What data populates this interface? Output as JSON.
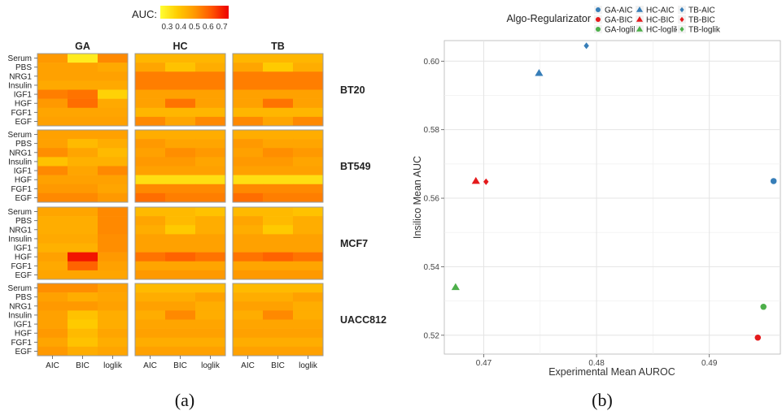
{
  "panel_a_label": "(a)",
  "panel_b_label": "(b)",
  "chart_data": [
    {
      "type": "heatmap",
      "legend": {
        "title": "AUC:",
        "ticks": [
          "0.3",
          "0.4",
          "0.5",
          "0.6",
          "0.7"
        ],
        "range": [
          0.25,
          0.75
        ],
        "colors": [
          "#ffff33",
          "#ffcc00",
          "#ff9900",
          "#ff5500",
          "#ee0000"
        ]
      },
      "col_facets": [
        "GA",
        "HC",
        "TB"
      ],
      "row_facets": [
        "BT20",
        "BT549",
        "MCF7",
        "UACC812"
      ],
      "x_categories": [
        "AIC",
        "BIC",
        "loglik"
      ],
      "y_categories": [
        "Serum",
        "PBS",
        "NRG1",
        "Insulin",
        "IGF1",
        "HGF",
        "FGF1",
        "EGF"
      ],
      "values": {
        "BT20": {
          "GA": [
            [
              0.5,
              0.3,
              0.53
            ],
            [
              0.48,
              0.48,
              0.46
            ],
            [
              0.48,
              0.48,
              0.48
            ],
            [
              0.46,
              0.46,
              0.46
            ],
            [
              0.55,
              0.57,
              0.36
            ],
            [
              0.5,
              0.58,
              0.46
            ],
            [
              0.47,
              0.47,
              0.47
            ],
            [
              0.48,
              0.48,
              0.48
            ]
          ],
          "HC": [
            [
              0.43,
              0.43,
              0.43
            ],
            [
              0.47,
              0.4,
              0.45
            ],
            [
              0.55,
              0.55,
              0.55
            ],
            [
              0.55,
              0.55,
              0.55
            ],
            [
              0.48,
              0.48,
              0.48
            ],
            [
              0.48,
              0.57,
              0.48
            ],
            [
              0.43,
              0.43,
              0.43
            ],
            [
              0.53,
              0.47,
              0.53
            ]
          ],
          "TB": [
            [
              0.43,
              0.43,
              0.43
            ],
            [
              0.47,
              0.38,
              0.45
            ],
            [
              0.55,
              0.55,
              0.55
            ],
            [
              0.55,
              0.55,
              0.55
            ],
            [
              0.48,
              0.48,
              0.48
            ],
            [
              0.48,
              0.57,
              0.48
            ],
            [
              0.43,
              0.43,
              0.43
            ],
            [
              0.53,
              0.47,
              0.53
            ]
          ]
        },
        "BT549": {
          "GA": [
            [
              0.48,
              0.48,
              0.48
            ],
            [
              0.48,
              0.42,
              0.45
            ],
            [
              0.52,
              0.47,
              0.42
            ],
            [
              0.4,
              0.44,
              0.44
            ],
            [
              0.53,
              0.47,
              0.53
            ],
            [
              0.48,
              0.48,
              0.48
            ],
            [
              0.5,
              0.5,
              0.47
            ],
            [
              0.53,
              0.53,
              0.5
            ]
          ],
          "HC": [
            [
              0.45,
              0.45,
              0.45
            ],
            [
              0.5,
              0.47,
              0.47
            ],
            [
              0.48,
              0.52,
              0.5
            ],
            [
              0.5,
              0.5,
              0.47
            ],
            [
              0.48,
              0.48,
              0.48
            ],
            [
              0.33,
              0.33,
              0.33
            ],
            [
              0.53,
              0.53,
              0.53
            ],
            [
              0.58,
              0.55,
              0.55
            ]
          ],
          "TB": [
            [
              0.45,
              0.45,
              0.45
            ],
            [
              0.5,
              0.47,
              0.47
            ],
            [
              0.48,
              0.52,
              0.5
            ],
            [
              0.5,
              0.5,
              0.47
            ],
            [
              0.48,
              0.48,
              0.48
            ],
            [
              0.33,
              0.33,
              0.33
            ],
            [
              0.53,
              0.53,
              0.53
            ],
            [
              0.58,
              0.55,
              0.55
            ]
          ]
        },
        "MCF7": {
          "GA": [
            [
              0.47,
              0.47,
              0.53
            ],
            [
              0.45,
              0.45,
              0.53
            ],
            [
              0.45,
              0.45,
              0.53
            ],
            [
              0.46,
              0.46,
              0.52
            ],
            [
              0.44,
              0.44,
              0.52
            ],
            [
              0.48,
              0.72,
              0.5
            ],
            [
              0.46,
              0.6,
              0.48
            ],
            [
              0.47,
              0.47,
              0.47
            ]
          ],
          "HC": [
            [
              0.42,
              0.42,
              0.4
            ],
            [
              0.47,
              0.42,
              0.45
            ],
            [
              0.45,
              0.38,
              0.45
            ],
            [
              0.48,
              0.48,
              0.48
            ],
            [
              0.48,
              0.48,
              0.48
            ],
            [
              0.57,
              0.6,
              0.57
            ],
            [
              0.47,
              0.47,
              0.47
            ],
            [
              0.5,
              0.5,
              0.5
            ]
          ],
          "TB": [
            [
              0.42,
              0.42,
              0.4
            ],
            [
              0.47,
              0.42,
              0.45
            ],
            [
              0.45,
              0.38,
              0.45
            ],
            [
              0.48,
              0.48,
              0.48
            ],
            [
              0.48,
              0.48,
              0.48
            ],
            [
              0.57,
              0.6,
              0.57
            ],
            [
              0.47,
              0.47,
              0.47
            ],
            [
              0.5,
              0.5,
              0.5
            ]
          ]
        },
        "UACC812": {
          "GA": [
            [
              0.52,
              0.52,
              0.48
            ],
            [
              0.48,
              0.45,
              0.47
            ],
            [
              0.5,
              0.5,
              0.48
            ],
            [
              0.48,
              0.4,
              0.45
            ],
            [
              0.48,
              0.38,
              0.45
            ],
            [
              0.5,
              0.42,
              0.47
            ],
            [
              0.47,
              0.4,
              0.45
            ],
            [
              0.5,
              0.45,
              0.47
            ]
          ],
          "HC": [
            [
              0.42,
              0.42,
              0.42
            ],
            [
              0.45,
              0.45,
              0.48
            ],
            [
              0.48,
              0.48,
              0.45
            ],
            [
              0.45,
              0.53,
              0.45
            ],
            [
              0.47,
              0.47,
              0.47
            ],
            [
              0.48,
              0.48,
              0.48
            ],
            [
              0.45,
              0.45,
              0.45
            ],
            [
              0.48,
              0.48,
              0.48
            ]
          ],
          "TB": [
            [
              0.42,
              0.42,
              0.42
            ],
            [
              0.45,
              0.45,
              0.48
            ],
            [
              0.48,
              0.48,
              0.45
            ],
            [
              0.45,
              0.53,
              0.45
            ],
            [
              0.47,
              0.47,
              0.47
            ],
            [
              0.48,
              0.48,
              0.48
            ],
            [
              0.45,
              0.45,
              0.45
            ],
            [
              0.48,
              0.48,
              0.48
            ]
          ]
        }
      }
    },
    {
      "type": "scatter",
      "xlabel": "Experimental Mean AUROC",
      "ylabel": "Insilico Mean AUC",
      "xlim": [
        0.4665,
        0.4963
      ],
      "ylim": [
        0.5145,
        0.606
      ],
      "xticks": [
        0.47,
        0.48,
        0.49
      ],
      "yticks": [
        0.52,
        0.54,
        0.56,
        0.58,
        0.6
      ],
      "xtick_labels": [
        "0.47",
        "0.48",
        "0.49"
      ],
      "ytick_labels": [
        "0.52",
        "0.54",
        "0.56",
        "0.58",
        "0.60"
      ],
      "grid": true,
      "legend": {
        "title": "Algo-Regularizator",
        "placement": "top-right",
        "entries": [
          {
            "label": "GA-AIC",
            "shape": "circle",
            "color": "#377eb8"
          },
          {
            "label": "HC-AIC",
            "shape": "triangle",
            "color": "#377eb8"
          },
          {
            "label": "TB-AIC",
            "shape": "diamond",
            "color": "#377eb8"
          },
          {
            "label": "GA-BIC",
            "shape": "circle",
            "color": "#e41a1c"
          },
          {
            "label": "HC-BIC",
            "shape": "triangle",
            "color": "#e41a1c"
          },
          {
            "label": "TB-BIC",
            "shape": "diamond",
            "color": "#e41a1c"
          },
          {
            "label": "GA-loglik",
            "shape": "circle",
            "color": "#4daf4a"
          },
          {
            "label": "HC-loglik",
            "shape": "triangle",
            "color": "#4daf4a"
          },
          {
            "label": "TB-loglik",
            "shape": "diamond",
            "color": "#4daf4a"
          }
        ]
      },
      "points": [
        {
          "series": "TB-AIC",
          "x": 0.4791,
          "y": 0.6045,
          "shape": "diamond",
          "color": "#377eb8"
        },
        {
          "series": "HC-AIC",
          "x": 0.4749,
          "y": 0.5965,
          "shape": "triangle",
          "color": "#377eb8"
        },
        {
          "series": "GA-AIC",
          "x": 0.4957,
          "y": 0.565,
          "shape": "circle",
          "color": "#377eb8"
        },
        {
          "series": "HC-BIC",
          "x": 0.4693,
          "y": 0.565,
          "shape": "triangle",
          "color": "#e41a1c"
        },
        {
          "series": "TB-BIC",
          "x": 0.4702,
          "y": 0.5648,
          "shape": "diamond",
          "color": "#e41a1c"
        },
        {
          "series": "HC-loglik",
          "x": 0.4675,
          "y": 0.534,
          "shape": "triangle",
          "color": "#4daf4a"
        },
        {
          "series": "GA-loglik",
          "x": 0.4948,
          "y": 0.5283,
          "shape": "circle",
          "color": "#4daf4a"
        },
        {
          "series": "GA-BIC",
          "x": 0.4943,
          "y": 0.5193,
          "shape": "circle",
          "color": "#e41a1c"
        }
      ]
    }
  ]
}
